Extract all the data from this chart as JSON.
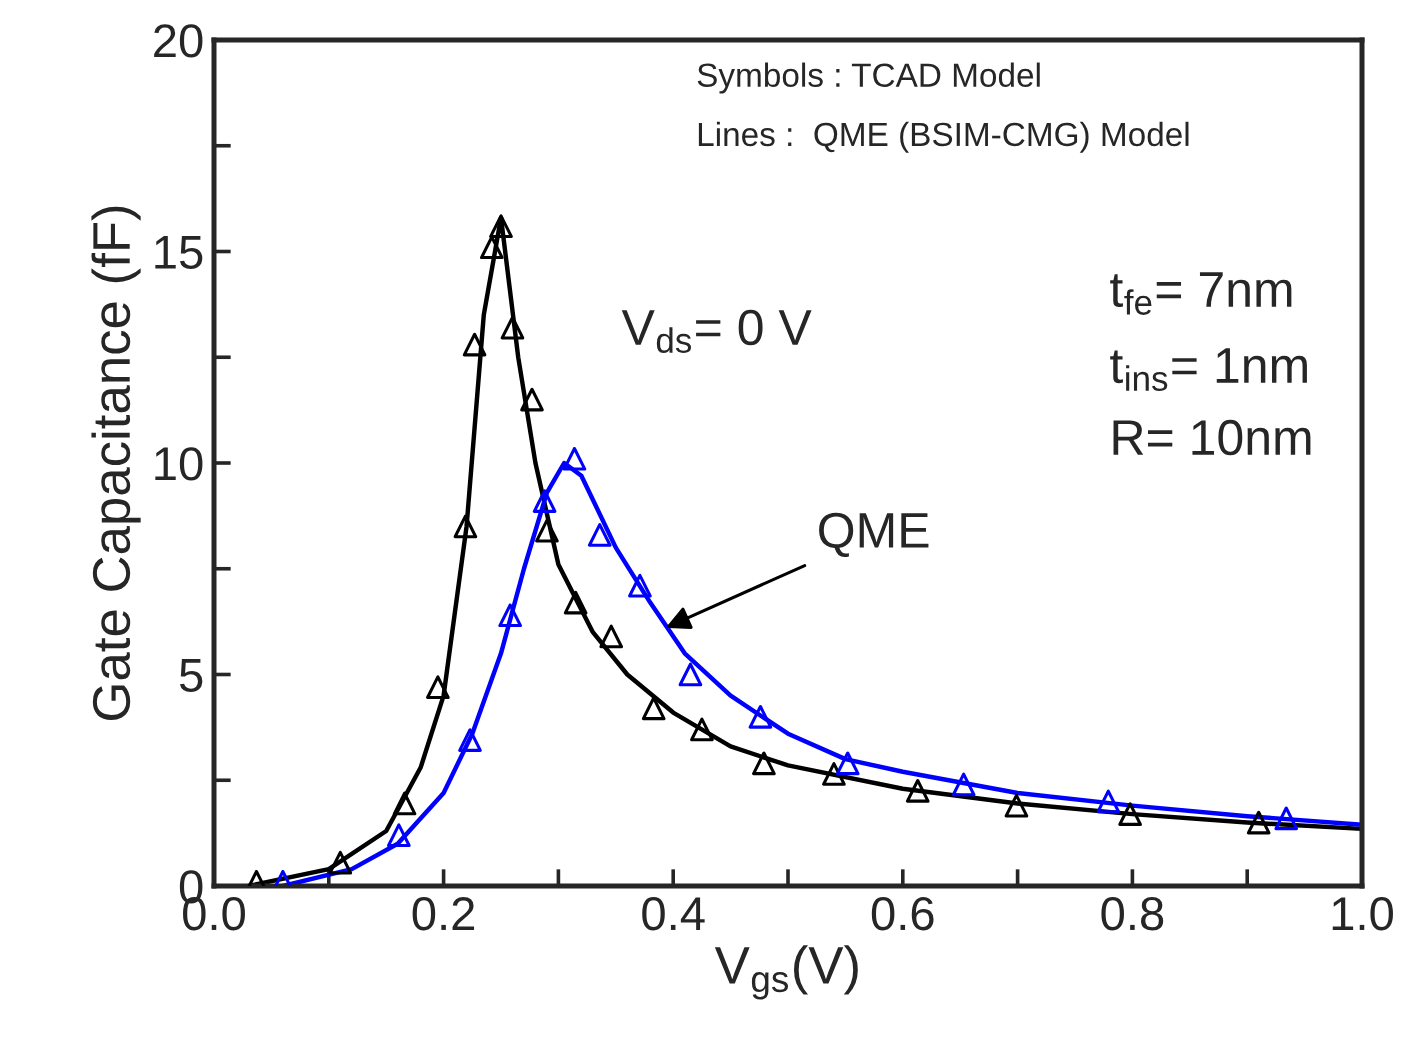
{
  "chart_data": {
    "type": "line",
    "xlabel": "V$_{gs}$(V)",
    "ylabel": "Gate Capacitance (fF)",
    "xlim": [
      0,
      1.0
    ],
    "ylim": [
      0,
      20
    ],
    "xticks": [
      {
        "value": 0,
        "label": "0.0"
      },
      {
        "value": 0.1,
        "label": null
      },
      0.2,
      {
        "value": 0.3,
        "label": null
      },
      0.4,
      {
        "value": 0.5,
        "label": null
      },
      0.6,
      {
        "value": 0.7,
        "label": null
      },
      0.8,
      {
        "value": 0.9,
        "label": null
      },
      {
        "value": 1.0,
        "label": "1.0"
      }
    ],
    "yticks": [
      0,
      {
        "value": 2.5,
        "label": null
      },
      5,
      {
        "value": 7.5,
        "label": null
      },
      10,
      {
        "value": 12.5,
        "label": null
      },
      15,
      {
        "value": 17.5,
        "label": null
      },
      20
    ],
    "grid": false,
    "legend": false,
    "annotations": [
      "Symbols : TCAD Model",
      "Lines :  QME (BSIM-CMG) Model",
      "V$_{ds}$= 0 V",
      "t$_{fe}$= 7nm",
      "t$_{ins}$= 1nm",
      "R= 10nm",
      {
        "text": "QME",
        "x": 0.389,
        "y": 6.05
      }
    ],
    "series": [
      {
        "color": "#000000",
        "marker": "none",
        "x": [
          0.03,
          0.1,
          0.15,
          0.18,
          0.2,
          0.22,
          0.235,
          0.25,
          0.265,
          0.28,
          0.3,
          0.33,
          0.36,
          0.4,
          0.45,
          0.5,
          0.6,
          0.7,
          0.8,
          0.9,
          1.0
        ],
        "values": [
          0,
          0.4,
          1.3,
          2.8,
          4.5,
          8.5,
          13.5,
          15.8,
          12.5,
          10.0,
          7.6,
          6.0,
          5.0,
          4.1,
          3.3,
          2.85,
          2.3,
          1.95,
          1.7,
          1.5,
          1.35
        ]
      },
      {
        "color": "#0000ff",
        "marker": "none",
        "x": [
          0.06,
          0.12,
          0.16,
          0.2,
          0.225,
          0.25,
          0.27,
          0.29,
          0.305,
          0.32,
          0.35,
          0.38,
          0.41,
          0.45,
          0.5,
          0.55,
          0.6,
          0.7,
          0.8,
          0.9,
          1.0
        ],
        "values": [
          0,
          0.4,
          1.0,
          2.2,
          3.6,
          5.5,
          7.5,
          9.3,
          10.0,
          9.7,
          8.0,
          6.7,
          5.5,
          4.5,
          3.6,
          3.0,
          2.7,
          2.2,
          1.9,
          1.65,
          1.45
        ]
      },
      {
        "type": "scatter",
        "color": "#000000",
        "marker": "triangle",
        "x": [
          0.037,
          0.11,
          0.166,
          0.195,
          0.219,
          0.227,
          0.242,
          0.25,
          0.26,
          0.277,
          0.29,
          0.315,
          0.346,
          0.383,
          0.425,
          0.479,
          0.54,
          0.613,
          0.699,
          0.798,
          0.91
        ],
        "values": [
          0.1,
          0.55,
          1.95,
          4.7,
          8.5,
          12.8,
          15.1,
          15.6,
          13.2,
          11.5,
          8.4,
          6.7,
          5.9,
          4.2,
          3.7,
          2.9,
          2.65,
          2.25,
          1.9,
          1.7,
          1.5
        ]
      },
      {
        "type": "scatter",
        "color": "#0000ff",
        "marker": "triangle",
        "x": [
          0.06,
          0.161,
          0.223,
          0.258,
          0.288,
          0.314,
          0.336,
          0.371,
          0.415,
          0.476,
          0.552,
          0.653,
          0.779,
          0.934
        ],
        "values": [
          0.1,
          1.2,
          3.45,
          6.4,
          9.1,
          10.1,
          8.3,
          7.1,
          5.0,
          4.0,
          2.9,
          2.4,
          2.0,
          1.6
        ]
      }
    ]
  }
}
